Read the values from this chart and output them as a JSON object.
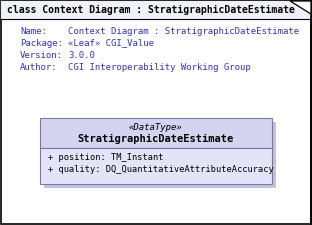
{
  "title": "class Context Diagram : StratigraphicDateEstimate",
  "bg_color": "#ffffff",
  "outer_border_color": "#000000",
  "info_labels": [
    "Name:",
    "Package:",
    "Version:",
    "Author:"
  ],
  "info_values": [
    "Context Diagram : StratigraphicDateEstimate",
    "«Leaf» CGI_Value",
    "3.0.0",
    "CGI Interoperability Working Group"
  ],
  "info_text_color": "#3333bb",
  "box_header_bg": "#d4d4f0",
  "box_attr_bg": "#e4e4f8",
  "box_border_color": "#7777aa",
  "box_shadow_color": "#aaaacc",
  "box_stereotype": "«DataType»",
  "box_classname": "StratigraphicDateEstimate",
  "box_attributes": [
    "+ position: TM_Instant",
    "+ quality: DQ_QuantitativeAttributeAccuracy"
  ],
  "box_text_color": "#000000",
  "title_bg": "#f0f0f8",
  "title_text_color": "#000000",
  "title_border_color": "#000000"
}
